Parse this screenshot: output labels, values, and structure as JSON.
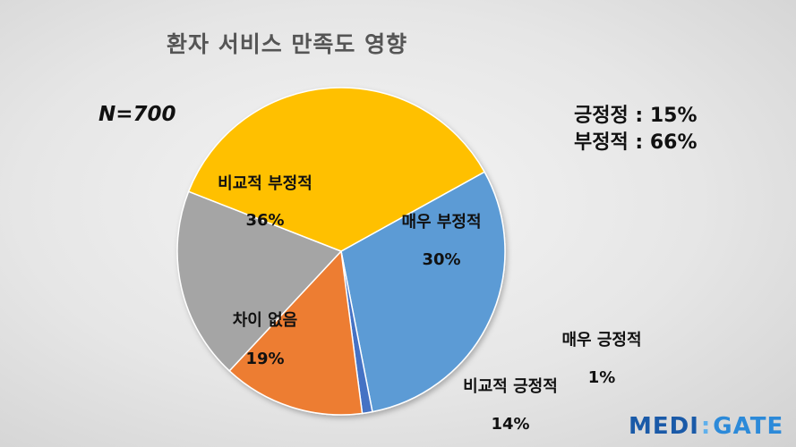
{
  "chart_data": {
    "type": "pie",
    "title": "환자 서비스 만족도 영향",
    "sample": "N=700",
    "slices": [
      {
        "label": "매우 부정적",
        "value": 30,
        "display": "30%",
        "color": "#5b9bd5"
      },
      {
        "label": "매우 긍정적",
        "value": 1,
        "display": "1%",
        "color": "#4472c4"
      },
      {
        "label": "비교적 긍정적",
        "value": 14,
        "display": "14%",
        "color": "#ed7d31"
      },
      {
        "label": "차이 없음",
        "value": 19,
        "display": "19%",
        "color": "#a5a5a5"
      },
      {
        "label": "비교적 부정적",
        "value": 36,
        "display": "36%",
        "color": "#ffc000"
      }
    ],
    "summary": [
      {
        "label": "긍정정 : 15%"
      },
      {
        "label": "부정적 : 66%"
      }
    ]
  },
  "brand": {
    "part1": "MEDI",
    "separator": ":",
    "part2": "GATE"
  }
}
